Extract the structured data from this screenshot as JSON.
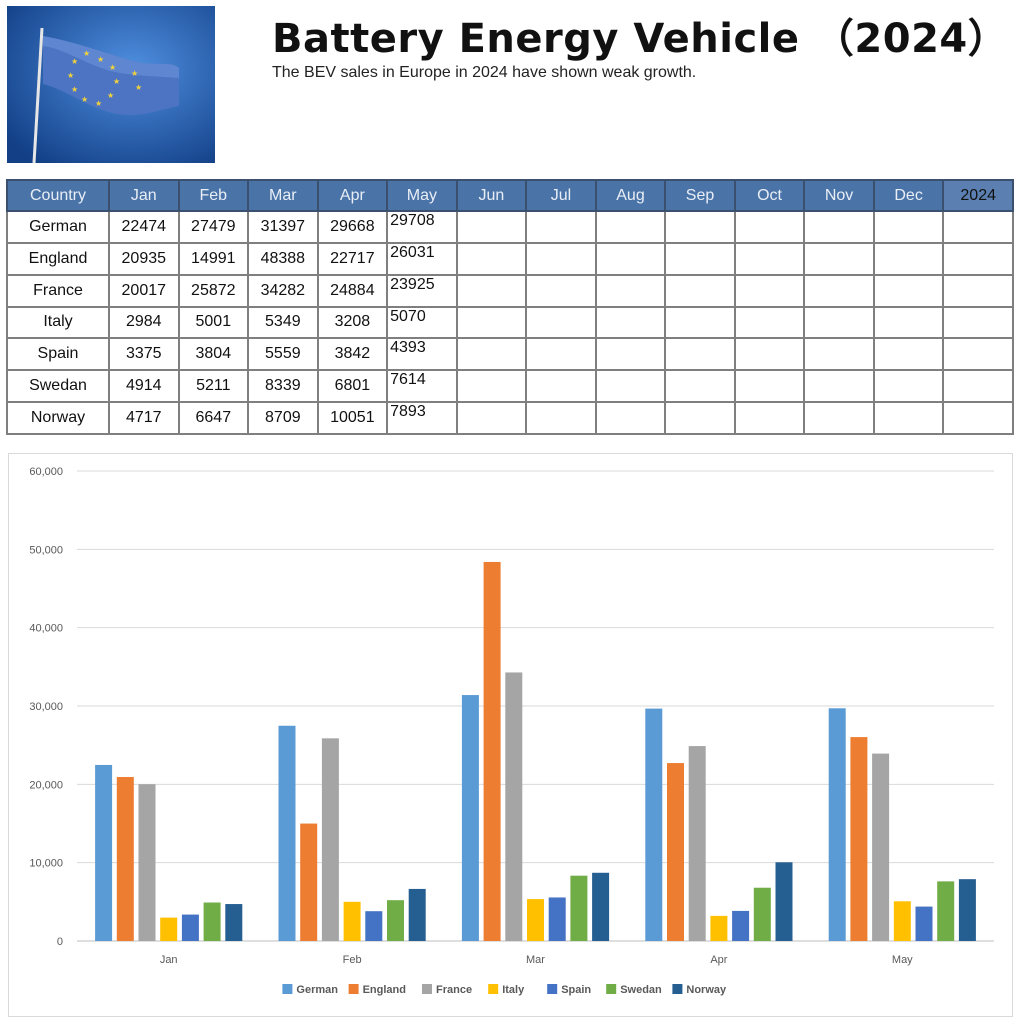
{
  "header": {
    "title": "Battery Energy Vehicle （2024）",
    "subtitle": "The BEV sales in Europe in 2024 have shown weak growth."
  },
  "flag_image": {
    "icon": "eu-flag-icon",
    "background": "#1f4f9e",
    "flag_color": "#5b7fc4",
    "star_color": "#f2d23a"
  },
  "table": {
    "headers": [
      "Country",
      "Jan",
      "Feb",
      "Mar",
      "Apr",
      "May",
      "Jun",
      "Jul",
      "Aug",
      "Sep",
      "Oct",
      "Nov",
      "Dec",
      "2024"
    ],
    "rows": [
      {
        "country": "German",
        "values": [
          "22474",
          "27479",
          "31397",
          "29668",
          "29708",
          "",
          "",
          "",
          "",
          "",
          "",
          "",
          ""
        ]
      },
      {
        "country": "England",
        "values": [
          "20935",
          "14991",
          "48388",
          "22717",
          "26031",
          "",
          "",
          "",
          "",
          "",
          "",
          "",
          ""
        ]
      },
      {
        "country": "France",
        "values": [
          "20017",
          "25872",
          "34282",
          "24884",
          "23925",
          "",
          "",
          "",
          "",
          "",
          "",
          "",
          ""
        ]
      },
      {
        "country": "Italy",
        "values": [
          "2984",
          "5001",
          "5349",
          "3208",
          "5070",
          "",
          "",
          "",
          "",
          "",
          "",
          "",
          ""
        ]
      },
      {
        "country": "Spain",
        "values": [
          "3375",
          "3804",
          "5559",
          "3842",
          "4393",
          "",
          "",
          "",
          "",
          "",
          "",
          "",
          ""
        ]
      },
      {
        "country": "Swedan",
        "values": [
          "4914",
          "5211",
          "8339",
          "6801",
          "7614",
          "",
          "",
          "",
          "",
          "",
          "",
          "",
          ""
        ]
      },
      {
        "country": "Norway",
        "values": [
          "4717",
          "6647",
          "8709",
          "10051",
          "7893",
          "",
          "",
          "",
          "",
          "",
          "",
          "",
          ""
        ]
      }
    ],
    "header_color": "#4a74a8"
  },
  "chart_data": {
    "type": "bar",
    "title": "",
    "xlabel": "",
    "ylabel": "",
    "categories": [
      "Jan",
      "Feb",
      "Mar",
      "Apr",
      "May"
    ],
    "ylim": [
      0,
      60000
    ],
    "yticks": [
      0,
      10000,
      20000,
      30000,
      40000,
      50000,
      60000
    ],
    "ytick_labels": [
      "0",
      "10,000",
      "20,000",
      "30,000",
      "40,000",
      "50,000",
      "60,000"
    ],
    "grid": true,
    "legend_position": "bottom",
    "series": [
      {
        "name": "German",
        "color": "#5b9bd5",
        "values": [
          22474,
          27479,
          31397,
          29668,
          29708
        ]
      },
      {
        "name": "England",
        "color": "#ed7d31",
        "values": [
          20935,
          14991,
          48388,
          22717,
          26031
        ]
      },
      {
        "name": "France",
        "color": "#a5a5a5",
        "values": [
          20017,
          25872,
          34282,
          24884,
          23925
        ]
      },
      {
        "name": "Italy",
        "color": "#ffc000",
        "values": [
          2984,
          5001,
          5349,
          3208,
          5070
        ]
      },
      {
        "name": "Spain",
        "color": "#4472c4",
        "values": [
          3375,
          3804,
          5559,
          3842,
          4393
        ]
      },
      {
        "name": "Swedan",
        "color": "#70ad47",
        "values": [
          4914,
          5211,
          8339,
          6801,
          7614
        ]
      },
      {
        "name": "Norway",
        "color": "#255e91",
        "values": [
          4717,
          6647,
          8709,
          10051,
          7893
        ]
      }
    ]
  }
}
